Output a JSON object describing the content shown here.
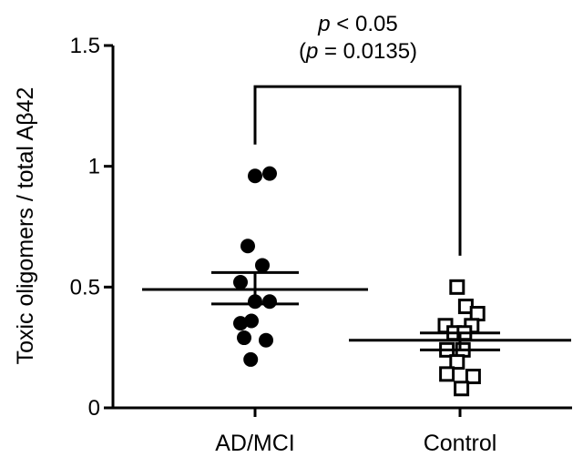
{
  "chart_data": {
    "type": "scatter",
    "ylabel": "Toxic oligomers / total Aβ42",
    "ylim": [
      0,
      1.5
    ],
    "yticks": [
      {
        "value": 0,
        "label": "0"
      },
      {
        "value": 0.5,
        "label": "0.5"
      },
      {
        "value": 1,
        "label": "1"
      },
      {
        "value": 1.5,
        "label": "1.5"
      }
    ],
    "categories": [
      "AD/MCI",
      "Control"
    ],
    "series": [
      {
        "name": "AD/MCI",
        "marker": "filled-circle",
        "points": [
          {
            "dx": 0,
            "y": 0.96
          },
          {
            "dx": 1,
            "y": 0.97
          },
          {
            "dx": -0.5,
            "y": 0.67
          },
          {
            "dx": 0.5,
            "y": 0.59
          },
          {
            "dx": -1,
            "y": 0.52
          },
          {
            "dx": 0,
            "y": 0.44
          },
          {
            "dx": 1,
            "y": 0.44
          },
          {
            "dx": -1,
            "y": 0.35
          },
          {
            "dx": -0.25,
            "y": 0.36
          },
          {
            "dx": -0.75,
            "y": 0.29
          },
          {
            "dx": 0.75,
            "y": 0.28
          },
          {
            "dx": -0.3,
            "y": 0.2
          }
        ],
        "mean": 0.49,
        "sem_upper": 0.56,
        "sem_lower": 0.43
      },
      {
        "name": "Control",
        "marker": "open-square",
        "points": [
          {
            "dx": -0.2,
            "y": 0.5
          },
          {
            "dx": 0.4,
            "y": 0.42
          },
          {
            "dx": 1.2,
            "y": 0.39
          },
          {
            "dx": -1,
            "y": 0.34
          },
          {
            "dx": 0.8,
            "y": 0.34
          },
          {
            "dx": -0.4,
            "y": 0.31
          },
          {
            "dx": 0.3,
            "y": 0.31
          },
          {
            "dx": -0.9,
            "y": 0.24
          },
          {
            "dx": 0.2,
            "y": 0.24
          },
          {
            "dx": -0.2,
            "y": 0.19
          },
          {
            "dx": -0.9,
            "y": 0.14
          },
          {
            "dx": 0.9,
            "y": 0.13
          },
          {
            "dx": 0.1,
            "y": 0.08
          }
        ],
        "mean": 0.28,
        "sem_upper": 0.31,
        "sem_lower": 0.24
      }
    ],
    "significance": {
      "line1_p": "p",
      "line1_rest": " < 0.05",
      "line2_open": "(",
      "line2_p": "p",
      "line2_rest": " = 0.0135)",
      "left_y": 1.09,
      "right_y": 0.63,
      "bracket_y": 1.33
    },
    "grid": false,
    "legend": "none"
  }
}
